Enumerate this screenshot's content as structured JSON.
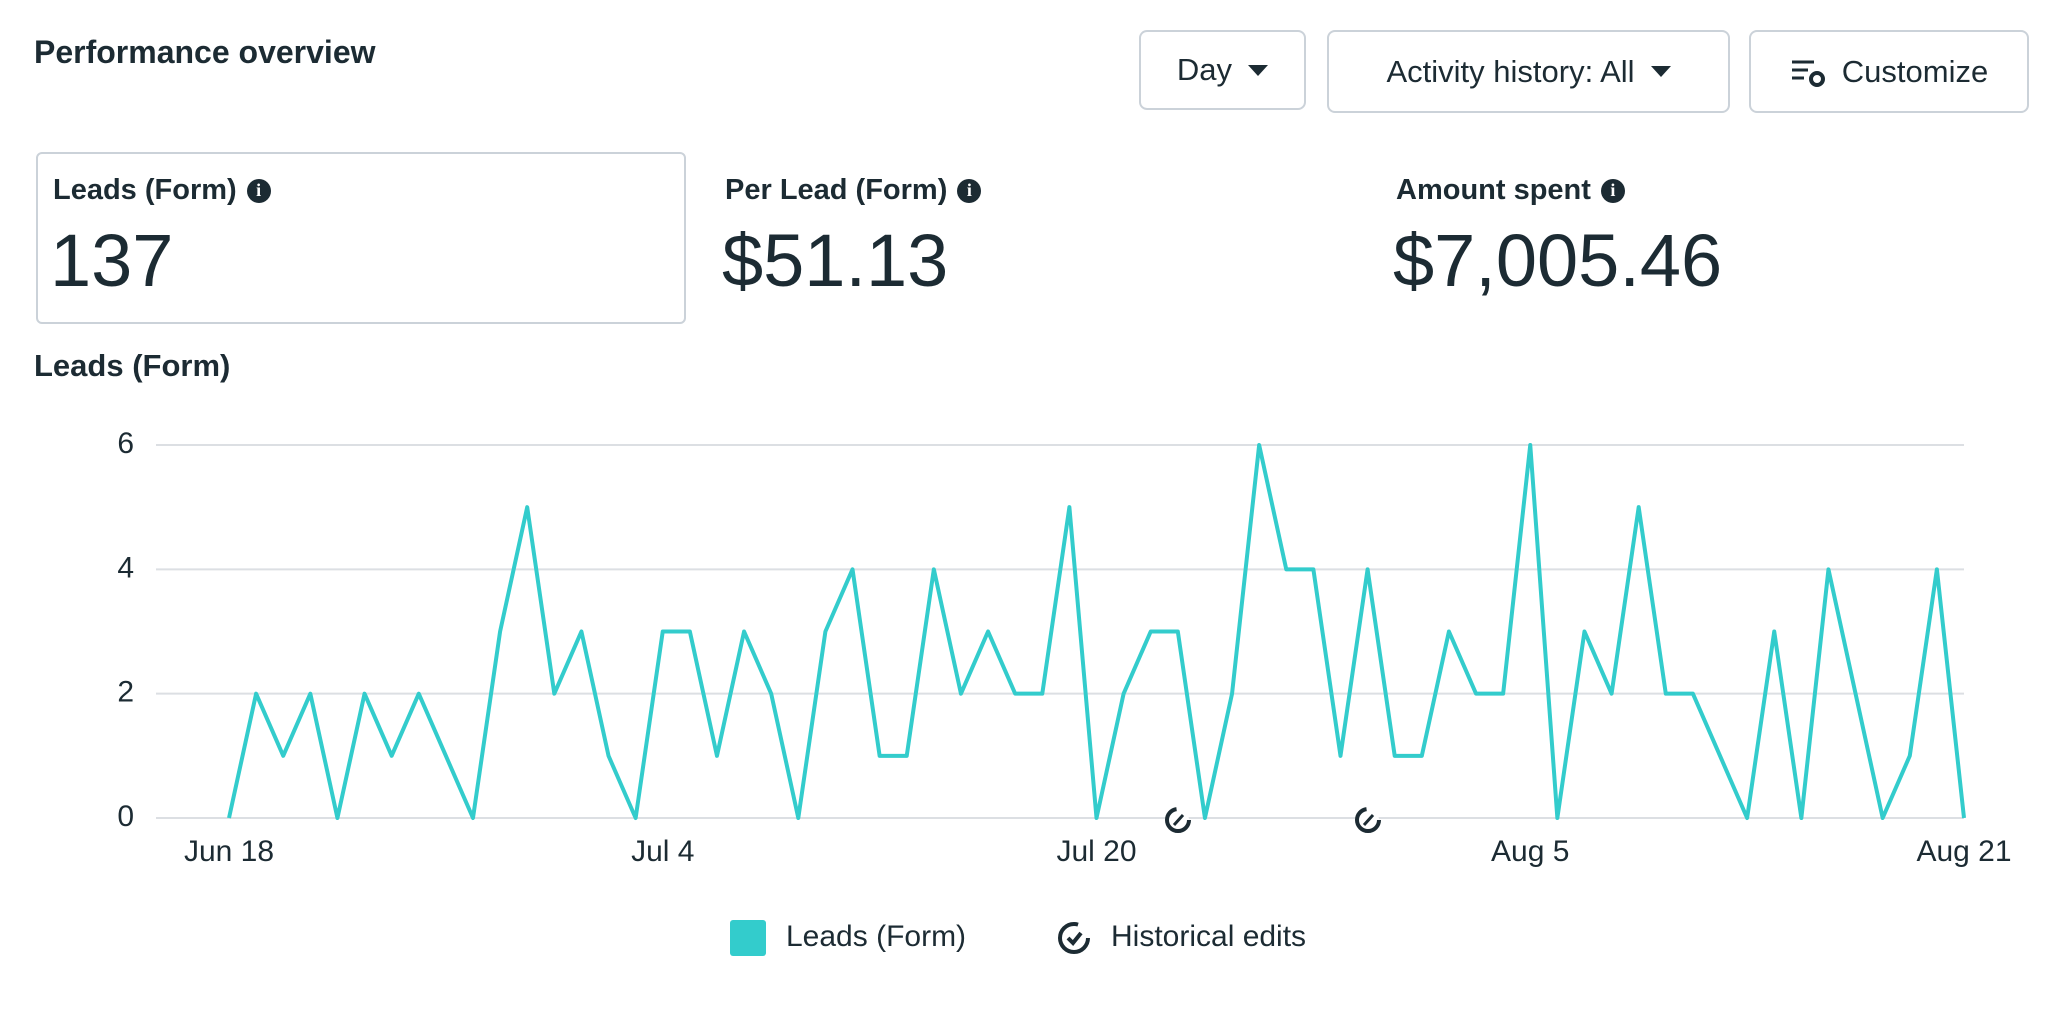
{
  "header": {
    "title": "Performance overview",
    "buttons": [
      "Day",
      "Activity history: All",
      "Customize"
    ]
  },
  "metrics": [
    {
      "label": "Leads (Form)",
      "value": "137"
    },
    {
      "label": "Per Lead (Form)",
      "value": "$51.13"
    },
    {
      "label": "Amount spent",
      "value": "$7,005.46"
    }
  ],
  "chart_data": {
    "type": "line",
    "title": "Leads (Form)",
    "categories": [
      "Jun 18",
      null,
      null,
      null,
      null,
      null,
      null,
      null,
      null,
      null,
      null,
      null,
      null,
      null,
      null,
      null,
      "Jul 4",
      null,
      null,
      null,
      null,
      null,
      null,
      null,
      null,
      null,
      null,
      null,
      null,
      null,
      null,
      null,
      "Jul 20",
      null,
      null,
      null,
      null,
      null,
      null,
      null,
      null,
      null,
      null,
      null,
      null,
      null,
      null,
      null,
      "Aug 5",
      null,
      null,
      null,
      null,
      null,
      null,
      null,
      null,
      null,
      null,
      null,
      null,
      null,
      null,
      null,
      "Aug 21"
    ],
    "series": [
      {
        "name": "Leads (Form)",
        "color": "#33cccc",
        "values": [
          0,
          2,
          1,
          2,
          0,
          2,
          1,
          2,
          1,
          0,
          3,
          5,
          2,
          3,
          1,
          0,
          3,
          3,
          1,
          3,
          2,
          0,
          3,
          4,
          1,
          1,
          4,
          2,
          3,
          2,
          2,
          5,
          0,
          2,
          3,
          3,
          0,
          2,
          6,
          4,
          4,
          1,
          4,
          1,
          1,
          3,
          2,
          2,
          6,
          0,
          3,
          2,
          5,
          2,
          2,
          1,
          0,
          3,
          0,
          4,
          2,
          0,
          1,
          4,
          0
        ]
      }
    ],
    "legend_extra": "Historical edits",
    "ylim": [
      0,
      6
    ],
    "yticks": [
      0,
      2,
      4,
      6
    ],
    "grid": true
  }
}
